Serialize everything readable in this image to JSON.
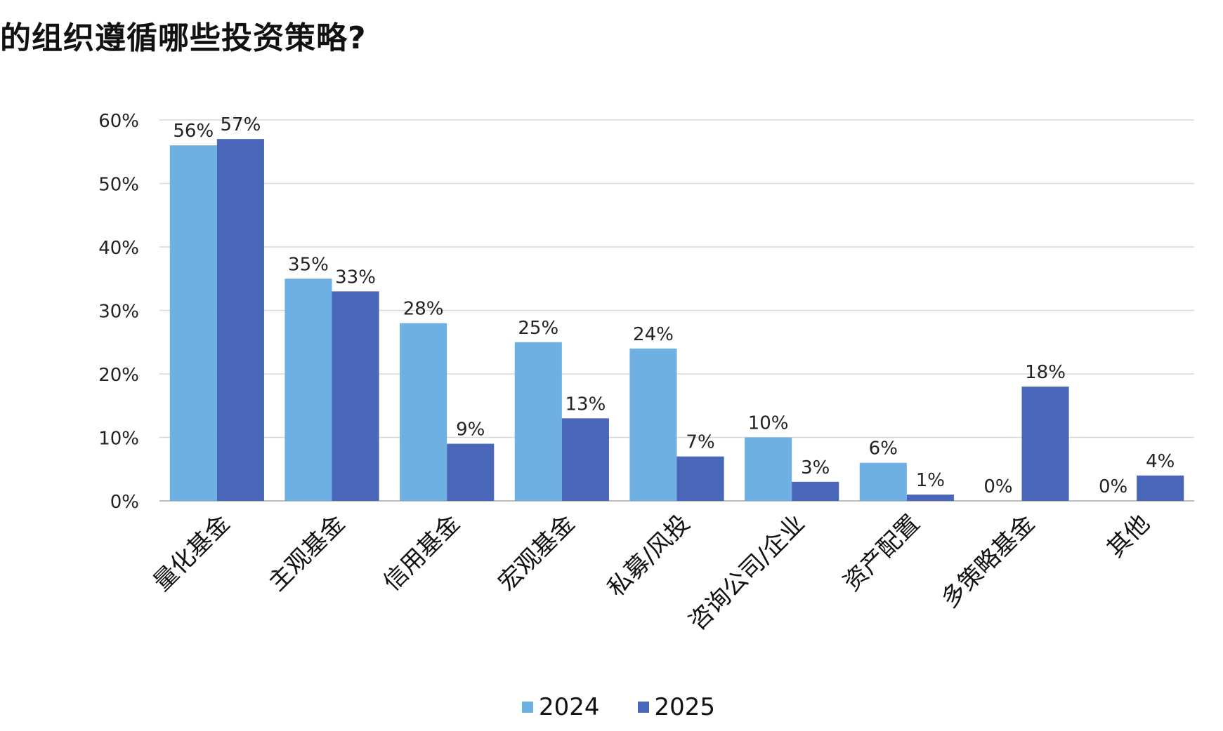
{
  "chart_data": {
    "type": "bar",
    "title": "的组织遵循哪些投资策略?",
    "categories": [
      "量化基金",
      "主观基金",
      "信用基金",
      "宏观基金",
      "私募/风投",
      "咨询公司/企业",
      "资产配置",
      "多策略基金",
      "其他"
    ],
    "series": [
      {
        "name": "2024",
        "color": "#6fb0e2",
        "values": [
          56,
          35,
          28,
          25,
          24,
          10,
          6,
          0,
          0
        ],
        "labels": [
          "56%",
          "35%",
          "28%",
          "25%",
          "24%",
          "10%",
          "6%",
          "0%",
          "0%"
        ]
      },
      {
        "name": "2025",
        "color": "#4a66b8",
        "values": [
          57,
          33,
          9,
          13,
          7,
          3,
          1,
          18,
          4
        ],
        "labels": [
          "57%",
          "33%",
          "9%",
          "13%",
          "7%",
          "3%",
          "1%",
          "18%",
          "4%"
        ]
      }
    ],
    "ylim": [
      0,
      60
    ],
    "yticks": [
      "0%",
      "10%",
      "20%",
      "30%",
      "40%",
      "50%",
      "60%"
    ],
    "grid": true,
    "legend_position": "bottom-center",
    "xlabel": "",
    "ylabel": ""
  }
}
